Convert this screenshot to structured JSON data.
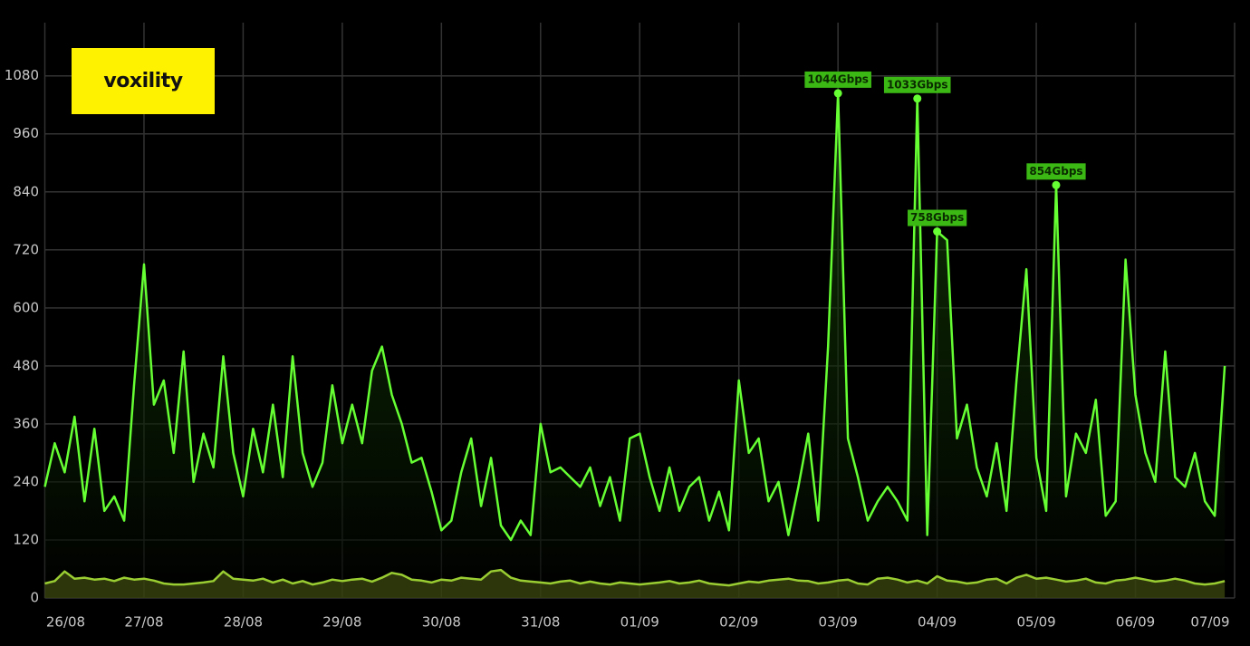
{
  "logo": "voxility",
  "chart_data": {
    "type": "line",
    "x": [
      0,
      0.1,
      0.2,
      0.3,
      0.4,
      0.5,
      0.6,
      0.7,
      0.8,
      0.9,
      1,
      1.1,
      1.2,
      1.3,
      1.4,
      1.5,
      1.6,
      1.7,
      1.8,
      1.9,
      2,
      2.1,
      2.2,
      2.3,
      2.4,
      2.5,
      2.6,
      2.7,
      2.8,
      2.9,
      3,
      3.1,
      3.2,
      3.3,
      3.4,
      3.5,
      3.6,
      3.7,
      3.8,
      3.9,
      4,
      4.1,
      4.2,
      4.3,
      4.4,
      4.5,
      4.6,
      4.7,
      4.8,
      4.9,
      5,
      5.1,
      5.2,
      5.3,
      5.4,
      5.5,
      5.6,
      5.7,
      5.8,
      5.9,
      6,
      6.1,
      6.2,
      6.3,
      6.4,
      6.5,
      6.6,
      6.7,
      6.8,
      6.9,
      7,
      7.1,
      7.2,
      7.3,
      7.4,
      7.5,
      7.6,
      7.7,
      7.8,
      7.9,
      8,
      8.1,
      8.2,
      8.3,
      8.4,
      8.5,
      8.6,
      8.7,
      8.8,
      8.9,
      9,
      9.1,
      9.2,
      9.3,
      9.4,
      9.5,
      9.6,
      9.7,
      9.8,
      9.9,
      10,
      10.1,
      10.2,
      10.3,
      10.4,
      10.5,
      10.6,
      10.7,
      10.8,
      10.9,
      11,
      11.1,
      11.2,
      11.3,
      11.4,
      11.5,
      11.6,
      11.7,
      11.8,
      11.9
    ],
    "series": [
      {
        "color": "#66ff33",
        "fill": "#1c5a08",
        "values": [
          230,
          320,
          260,
          375,
          200,
          350,
          180,
          210,
          160,
          440,
          690,
          400,
          450,
          300,
          510,
          240,
          340,
          270,
          500,
          300,
          210,
          350,
          260,
          400,
          250,
          500,
          300,
          230,
          280,
          440,
          320,
          400,
          320,
          470,
          520,
          420,
          360,
          280,
          290,
          220,
          140,
          160,
          260,
          330,
          190,
          290,
          150,
          120,
          160,
          130,
          360,
          260,
          270,
          250,
          230,
          270,
          190,
          250,
          160,
          330,
          340,
          250,
          180,
          270,
          180,
          230,
          250,
          160,
          220,
          140,
          450,
          300,
          330,
          200,
          240,
          130,
          230,
          340,
          160,
          520,
          1044,
          330,
          250,
          160,
          200,
          230,
          200,
          160,
          1033,
          130,
          758,
          740,
          330,
          400,
          270,
          210,
          320,
          180,
          450,
          680,
          290,
          180,
          854,
          210,
          340,
          300,
          410,
          170,
          200,
          700,
          420,
          300,
          240,
          510,
          250,
          230,
          300,
          200,
          170,
          480
        ]
      },
      {
        "color": "#9acd32",
        "fill": "#4a5a10",
        "values": [
          30,
          35,
          55,
          40,
          42,
          38,
          40,
          35,
          42,
          38,
          40,
          36,
          30,
          28,
          28,
          30,
          32,
          35,
          55,
          40,
          38,
          36,
          40,
          32,
          38,
          30,
          35,
          28,
          32,
          38,
          35,
          38,
          40,
          34,
          42,
          52,
          48,
          38,
          36,
          32,
          38,
          36,
          42,
          40,
          38,
          55,
          58,
          42,
          36,
          34,
          32,
          30,
          34,
          36,
          30,
          34,
          30,
          28,
          32,
          30,
          28,
          30,
          32,
          35,
          30,
          32,
          36,
          30,
          28,
          26,
          30,
          34,
          32,
          36,
          38,
          40,
          36,
          35,
          30,
          32,
          36,
          38,
          30,
          28,
          40,
          42,
          38,
          32,
          36,
          30,
          45,
          36,
          34,
          30,
          32,
          38,
          40,
          30,
          42,
          48,
          40,
          42,
          38,
          34,
          36,
          40,
          32,
          30,
          36,
          38,
          42,
          38,
          34,
          36,
          40,
          36,
          30,
          28,
          30,
          35
        ]
      }
    ],
    "xlim": [
      0,
      12
    ],
    "xticks": [
      {
        "value": 0,
        "label": "26/08"
      },
      {
        "value": 1,
        "label": "27/08"
      },
      {
        "value": 2,
        "label": "28/08"
      },
      {
        "value": 3,
        "label": "29/08"
      },
      {
        "value": 4,
        "label": "30/08"
      },
      {
        "value": 5,
        "label": "31/08"
      },
      {
        "value": 6,
        "label": "01/09"
      },
      {
        "value": 7,
        "label": "02/09"
      },
      {
        "value": 8,
        "label": "03/09"
      },
      {
        "value": 9,
        "label": "04/09"
      },
      {
        "value": 10,
        "label": "05/09"
      },
      {
        "value": 11,
        "label": "06/09"
      },
      {
        "value": 12,
        "label": "07/09"
      }
    ],
    "ylim": [
      0,
      1190
    ],
    "yticks": [
      0,
      120,
      240,
      360,
      480,
      600,
      720,
      840,
      960,
      1080
    ],
    "grid": true,
    "annotations": [
      {
        "x": 8,
        "y": 1044,
        "label": "1044Gbps"
      },
      {
        "x": 8.8,
        "y": 1033,
        "label": "1033Gbps"
      },
      {
        "x": 9,
        "y": 758,
        "label": "758Gbps"
      },
      {
        "x": 10.2,
        "y": 854,
        "label": "854Gbps"
      }
    ],
    "annotation_color": "#3cb815"
  }
}
